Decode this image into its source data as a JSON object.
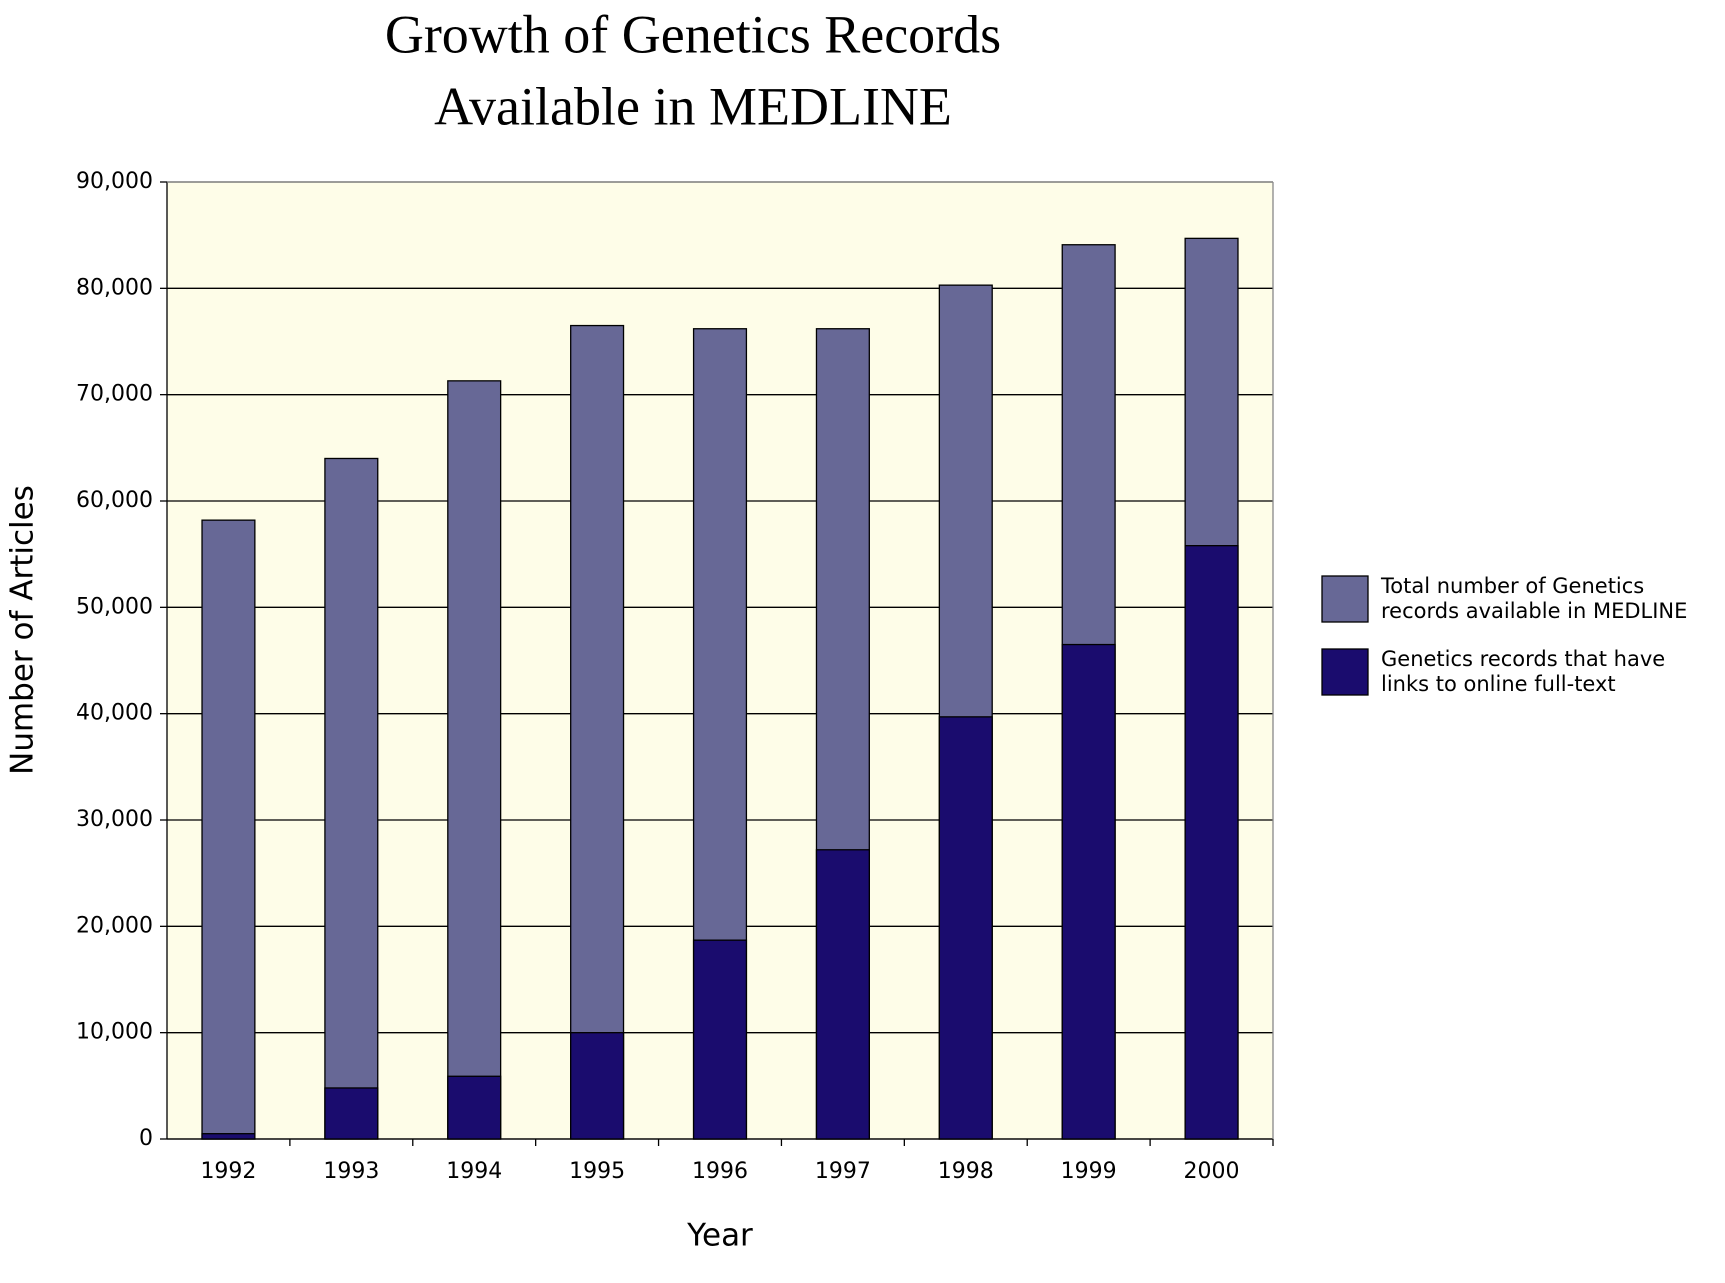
{
  "chart_data": {
    "type": "bar",
    "title": [
      "Growth of Genetics Records",
      "Available in MEDLINE"
    ],
    "x_label": "Year",
    "y_label": "Number of Articles",
    "categories": [
      "1992",
      "1993",
      "1994",
      "1995",
      "1996",
      "1997",
      "1998",
      "1999",
      "2000"
    ],
    "series": [
      {
        "name": [
          "Total number of Genetics",
          "records available in MEDLINE"
        ],
        "color": "#676896",
        "values": [
          58200,
          64000,
          71300,
          76500,
          76200,
          76200,
          80300,
          84100,
          84700
        ]
      },
      {
        "name": [
          "Genetics records that have",
          "links to online full-text"
        ],
        "color": "#1a0c6e",
        "values": [
          500,
          4800,
          5900,
          10000,
          18700,
          27200,
          39700,
          46500,
          55800
        ]
      }
    ],
    "ylim": [
      0,
      90000
    ],
    "yticks": [
      0,
      {
        "value": 10000,
        "label": "10,000"
      },
      {
        "value": 20000,
        "label": "20,000"
      },
      {
        "value": 30000,
        "label": "30,000"
      },
      {
        "value": 40000,
        "label": "40,000"
      },
      {
        "value": 50000,
        "label": "50,000"
      },
      {
        "value": 60000,
        "label": "60,000"
      },
      {
        "value": 70000,
        "label": "70,000"
      },
      {
        "value": 80000,
        "label": "80,000"
      },
      {
        "value": 90000,
        "label": "90,000"
      }
    ],
    "grid": true,
    "background": "#fefde8",
    "legend_position": "right"
  }
}
